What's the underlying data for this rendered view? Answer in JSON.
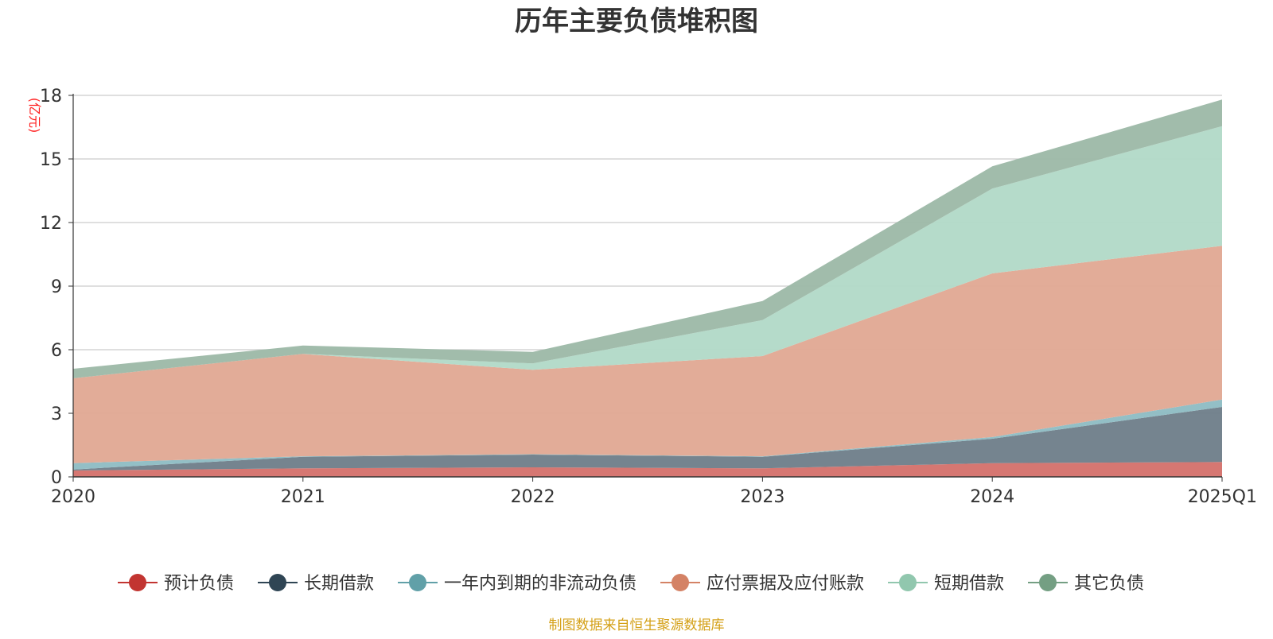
{
  "chart_data": {
    "type": "area",
    "stacked": true,
    "title": "历年主要负债堆积图",
    "unit_label": "(亿元)",
    "source_note": "制图数据来自恒生聚源数据库",
    "categories": [
      "2020",
      "2021",
      "2022",
      "2023",
      "2024",
      "2025Q1"
    ],
    "y_ticks": [
      "0",
      "3",
      "6",
      "9",
      "12",
      "15",
      "18"
    ],
    "ylim": [
      0,
      18
    ],
    "grid": true,
    "legend_position": "bottom",
    "series": [
      {
        "name": "预计负债",
        "color": "#c23531",
        "fill": "#d4706a",
        "values": [
          0.3,
          0.4,
          0.45,
          0.4,
          0.65,
          0.7
        ]
      },
      {
        "name": "长期借款",
        "color": "#2f4554",
        "fill": "#6e7d89",
        "values": [
          0.05,
          0.55,
          0.6,
          0.55,
          1.15,
          2.6
        ]
      },
      {
        "name": "一年内到期的非流动负债",
        "color": "#61a0a8",
        "fill": "#8dbcc3",
        "values": [
          0.3,
          0.02,
          0.02,
          0.02,
          0.08,
          0.35
        ]
      },
      {
        "name": "应付票据及应付账款",
        "color": "#d48265",
        "fill": "#e0a892",
        "values": [
          4.0,
          4.83,
          3.98,
          4.73,
          7.72,
          7.25
        ]
      },
      {
        "name": "短期借款",
        "color": "#91c7ae",
        "fill": "#b1d9c7",
        "values": [
          0.0,
          0.0,
          0.3,
          1.7,
          4.0,
          5.65
        ]
      },
      {
        "name": "其它负债",
        "color": "#749f83",
        "fill": "#9cb8a6",
        "values": [
          0.45,
          0.4,
          0.55,
          0.9,
          1.05,
          1.25
        ]
      }
    ]
  }
}
